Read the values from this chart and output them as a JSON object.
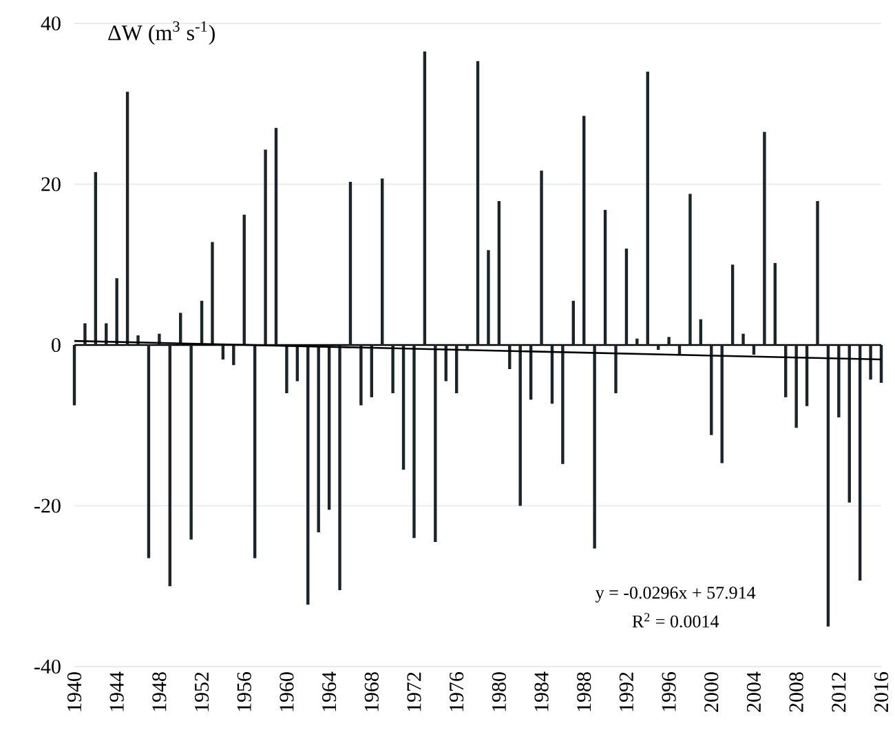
{
  "chart_data": {
    "type": "bar",
    "ylabel": "ΔW (m$^{3}$ s$^{-1}$)",
    "x": [
      1940,
      1941,
      1942,
      1943,
      1944,
      1945,
      1946,
      1947,
      1948,
      1949,
      1950,
      1951,
      1952,
      1953,
      1954,
      1955,
      1956,
      1957,
      1958,
      1959,
      1960,
      1961,
      1962,
      1963,
      1964,
      1965,
      1966,
      1967,
      1968,
      1969,
      1970,
      1971,
      1972,
      1973,
      1974,
      1975,
      1976,
      1977,
      1978,
      1979,
      1980,
      1981,
      1982,
      1983,
      1984,
      1985,
      1986,
      1987,
      1988,
      1989,
      1990,
      1991,
      1992,
      1993,
      1994,
      1995,
      1996,
      1997,
      1998,
      1999,
      2000,
      2001,
      2002,
      2003,
      2004,
      2005,
      2006,
      2007,
      2008,
      2009,
      2010,
      2011,
      2012,
      2013,
      2014,
      2015,
      2016
    ],
    "series": [
      {
        "color": "#1b2429",
        "values": [
          -7.5,
          2.7,
          21.5,
          2.7,
          8.3,
          31.5,
          1.2,
          -26.5,
          1.4,
          -30,
          4,
          -24.2,
          5.5,
          12.8,
          -1.8,
          -2.5,
          16.2,
          -26.5,
          24.3,
          27,
          -6,
          -4.5,
          -32.3,
          -23.3,
          -20.5,
          -30.5,
          20.3,
          -7.5,
          -6.5,
          20.7,
          -6,
          -15.5,
          -24,
          36.5,
          -24.5,
          -4.5,
          -6,
          -0.5,
          35.3,
          11.8,
          17.9,
          -3,
          -20,
          -6.8,
          21.7,
          -7.3,
          -14.8,
          5.5,
          28.5,
          -25.3,
          16.8,
          -6,
          12,
          0.8,
          34,
          -0.6,
          1,
          -1.3,
          18.8,
          3.2,
          -11.2,
          -14.7,
          10,
          1.4,
          -1.2,
          26.5,
          10.2,
          -6.5,
          -10.3,
          -7.6,
          17.9,
          -35,
          -9,
          -19.6,
          -29.3,
          -4.3,
          -4.7
        ]
      },
      {
        "type": "line",
        "color": "#000000",
        "x": [
          1940,
          2016
        ],
        "values": [
          0.5,
          -1.8
        ]
      }
    ],
    "xlim": [
      1940,
      2016
    ],
    "xticks": [
      1940,
      1944,
      1948,
      1952,
      1956,
      1960,
      1964,
      1968,
      1972,
      1976,
      1980,
      1984,
      1988,
      1992,
      1996,
      2000,
      2004,
      2008,
      2012,
      2016
    ],
    "ylim": [
      -40,
      40
    ],
    "yticks": [
      -40,
      -20,
      0,
      20,
      40
    ],
    "grid": "y",
    "annotations": [
      "y = -0.0296x + 57.914",
      "R$^{2}$ = 0.0014"
    ]
  }
}
